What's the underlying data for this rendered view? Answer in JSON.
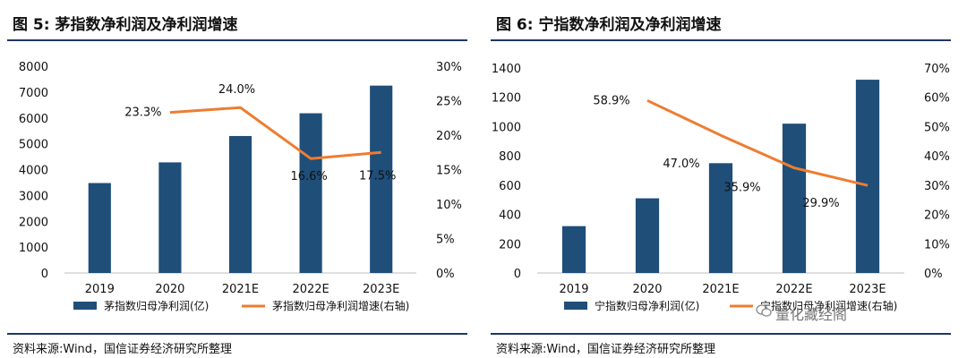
{
  "colors": {
    "bar": "#1f4e79",
    "line": "#ed7d31",
    "rule": "#1f3864"
  },
  "watermark": {
    "text": "量化藏经阁",
    "icon": "wechat-icon"
  },
  "panels": [
    {
      "title": "图 5:  茅指数净利润及净利润增速",
      "source": "资料来源:Wind，国信证券经济研究所整理"
    },
    {
      "title": "图 6:  宁指数净利润及净利润增速",
      "source": "资料来源:Wind，国信证券经济研究所整理"
    }
  ],
  "chart_data": [
    {
      "type": "bar",
      "categories": [
        "2019",
        "2020",
        "2021E",
        "2022E",
        "2023E"
      ],
      "series": [
        {
          "name": "茅指数归母净利润(亿)",
          "type": "bar",
          "axis": "left",
          "values": [
            3480,
            4280,
            5300,
            6180,
            7250
          ]
        },
        {
          "name": "茅指数归母净利润增速(右轴)",
          "type": "line",
          "axis": "right",
          "values": [
            null,
            23.3,
            24.0,
            16.6,
            17.5
          ],
          "labels": [
            null,
            "23.3%",
            "24.0%",
            "16.6%",
            "17.5%"
          ]
        }
      ],
      "left_ticks": [
        "0",
        "1000",
        "2000",
        "3000",
        "4000",
        "5000",
        "6000",
        "7000",
        "8000"
      ],
      "right_ticks": [
        "0%",
        "5%",
        "10%",
        "15%",
        "20%",
        "25%",
        "30%"
      ],
      "ylim_left": [
        0,
        8000
      ],
      "ylim_right": [
        0,
        30
      ],
      "grid": false,
      "legend": "bottom"
    },
    {
      "type": "bar",
      "categories": [
        "2019",
        "2020",
        "2021E",
        "2022E",
        "2023E"
      ],
      "series": [
        {
          "name": "宁指数归母净利润(亿)",
          "type": "bar",
          "axis": "left",
          "values": [
            320,
            510,
            750,
            1020,
            1320
          ]
        },
        {
          "name": "宁指数归母净利润增速(右轴)",
          "type": "line",
          "axis": "right",
          "values": [
            null,
            58.9,
            47.0,
            35.9,
            29.9
          ],
          "labels": [
            null,
            "58.9%",
            "47.0%",
            "35.9%",
            "29.9%"
          ]
        }
      ],
      "left_ticks": [
        "0",
        "200",
        "400",
        "600",
        "800",
        "1000",
        "1200",
        "1400"
      ],
      "right_ticks": [
        "0%",
        "10%",
        "20%",
        "30%",
        "40%",
        "50%",
        "60%",
        "70%"
      ],
      "ylim_left": [
        0,
        1400
      ],
      "ylim_right": [
        0,
        70
      ],
      "grid": false,
      "legend": "bottom"
    }
  ]
}
